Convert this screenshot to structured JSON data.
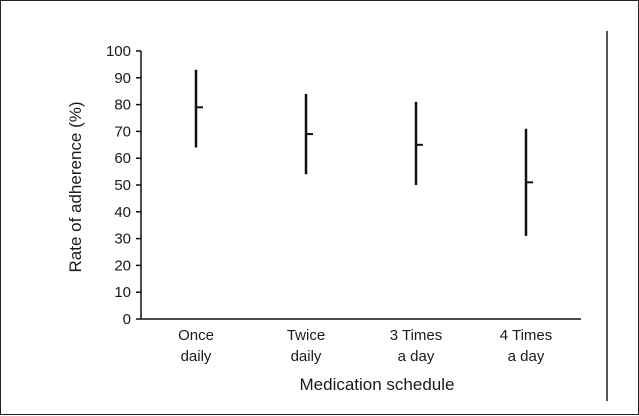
{
  "chart_data": {
    "type": "range",
    "title": "",
    "xlabel": "Medication schedule",
    "ylabel": "Rate of adherence (%)",
    "ylim": [
      0,
      100
    ],
    "yticks": [
      0,
      10,
      20,
      30,
      40,
      50,
      60,
      70,
      80,
      90,
      100
    ],
    "categories": [
      [
        "Once",
        "daily"
      ],
      [
        "Twice",
        "daily"
      ],
      [
        "3 Times",
        "a day"
      ],
      [
        "4 Times",
        "a day"
      ]
    ],
    "series": [
      {
        "points": [
          {
            "low": 64,
            "mid": 79,
            "high": 93
          },
          {
            "low": 54,
            "mid": 69,
            "high": 84
          },
          {
            "low": 50,
            "mid": 65,
            "high": 81
          },
          {
            "low": 31,
            "mid": 51,
            "high": 71
          }
        ]
      }
    ],
    "grid": false,
    "legend": "none"
  }
}
